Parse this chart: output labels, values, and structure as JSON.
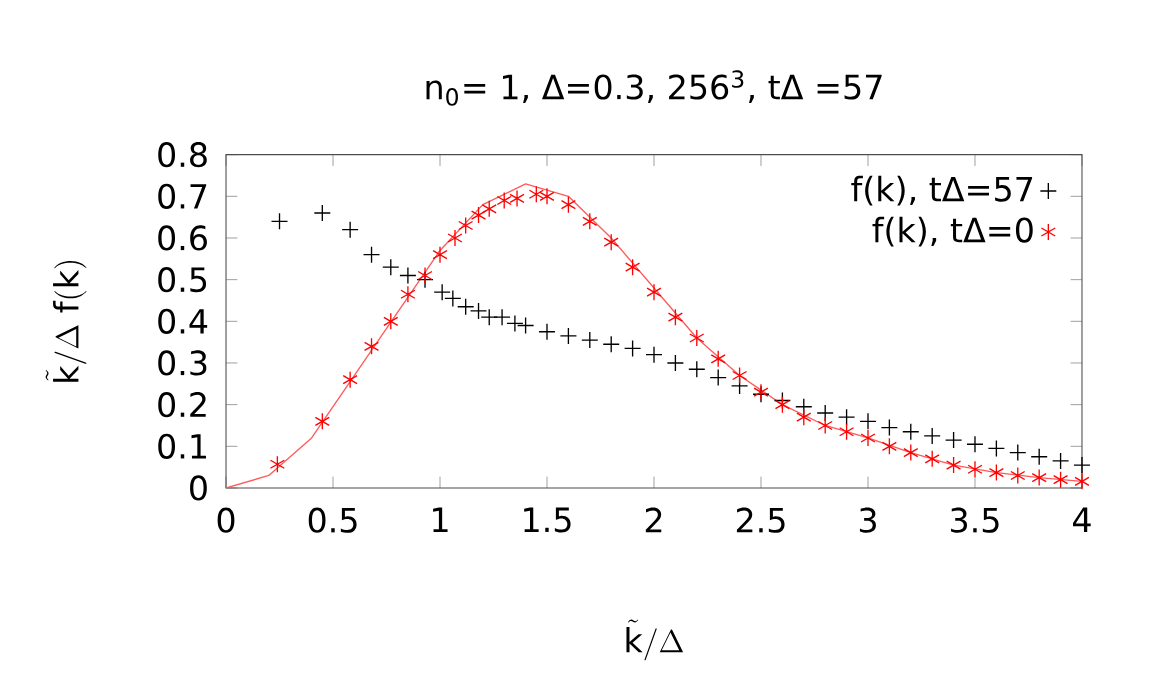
{
  "chart_data": {
    "type": "scatter",
    "title": "n$_{0}$= 1, Δ=0.3, 256$^{3}$, tΔ =57",
    "xlabel": "\\tilde{\\mathrm{k}}/\\Delta",
    "ylabel": "\\tilde{\\mathrm{k}}/\\Delta\\ \\mathrm{f(k)}",
    "xlim": [
      0,
      4
    ],
    "ylim": [
      0,
      0.8
    ],
    "xticks": [
      0,
      0.5,
      1,
      1.5,
      2,
      2.5,
      3,
      3.5,
      4
    ],
    "yticks": [
      0,
      0.1,
      0.2,
      0.3,
      0.4,
      0.5,
      0.6,
      0.7,
      0.8
    ],
    "legend": "top right",
    "series": [
      {
        "name": "f(k), tΔ=57",
        "color": "#000000",
        "marker": "cross",
        "x": [
          0.25,
          0.45,
          0.58,
          0.68,
          0.77,
          0.85,
          0.93,
          1.01,
          1.06,
          1.12,
          1.18,
          1.23,
          1.29,
          1.35,
          1.4,
          1.5,
          1.6,
          1.7,
          1.8,
          1.9,
          2.0,
          2.1,
          2.2,
          2.3,
          2.4,
          2.5,
          2.6,
          2.7,
          2.8,
          2.9,
          3.0,
          3.1,
          3.2,
          3.3,
          3.4,
          3.5,
          3.6,
          3.7,
          3.8,
          3.9,
          4.0
        ],
        "values": [
          0.64,
          0.66,
          0.62,
          0.56,
          0.53,
          0.51,
          0.5,
          0.47,
          0.455,
          0.435,
          0.425,
          0.41,
          0.41,
          0.395,
          0.39,
          0.375,
          0.365,
          0.355,
          0.345,
          0.335,
          0.32,
          0.3,
          0.285,
          0.265,
          0.245,
          0.225,
          0.21,
          0.195,
          0.18,
          0.17,
          0.16,
          0.145,
          0.135,
          0.125,
          0.115,
          0.105,
          0.095,
          0.085,
          0.075,
          0.065,
          0.055
        ]
      },
      {
        "name": "f(k), tΔ=0",
        "color": "#ff0000",
        "marker": "cross",
        "x": [
          0.24,
          0.45,
          0.58,
          0.68,
          0.77,
          0.85,
          0.93,
          1.0,
          1.07,
          1.12,
          1.18,
          1.23,
          1.3,
          1.36,
          1.45,
          1.5,
          1.6,
          1.7,
          1.8,
          1.9,
          2.0,
          2.1,
          2.2,
          2.3,
          2.4,
          2.5,
          2.6,
          2.7,
          2.8,
          2.9,
          3.0,
          3.1,
          3.2,
          3.3,
          3.4,
          3.5,
          3.6,
          3.7,
          3.8,
          3.9,
          4.0
        ],
        "values": [
          0.057,
          0.16,
          0.26,
          0.34,
          0.4,
          0.465,
          0.51,
          0.56,
          0.6,
          0.63,
          0.655,
          0.67,
          0.69,
          0.695,
          0.705,
          0.7,
          0.68,
          0.64,
          0.59,
          0.53,
          0.47,
          0.41,
          0.36,
          0.31,
          0.27,
          0.23,
          0.2,
          0.17,
          0.15,
          0.135,
          0.12,
          0.1,
          0.085,
          0.07,
          0.055,
          0.045,
          0.037,
          0.03,
          0.025,
          0.02,
          0.016
        ]
      },
      {
        "type": "line",
        "color": "#ff5a5a",
        "marker": "none",
        "x": [
          0,
          0.2,
          0.4,
          0.6,
          0.8,
          1.0,
          1.2,
          1.4,
          1.6,
          1.8,
          2.0,
          2.2,
          2.4,
          2.6,
          2.8,
          3.0,
          3.2,
          3.4,
          3.6,
          3.8,
          4.0
        ],
        "values": [
          0,
          0.03,
          0.12,
          0.27,
          0.42,
          0.57,
          0.68,
          0.73,
          0.7,
          0.6,
          0.48,
          0.36,
          0.27,
          0.2,
          0.15,
          0.12,
          0.085,
          0.055,
          0.037,
          0.025,
          0.016
        ]
      }
    ]
  }
}
